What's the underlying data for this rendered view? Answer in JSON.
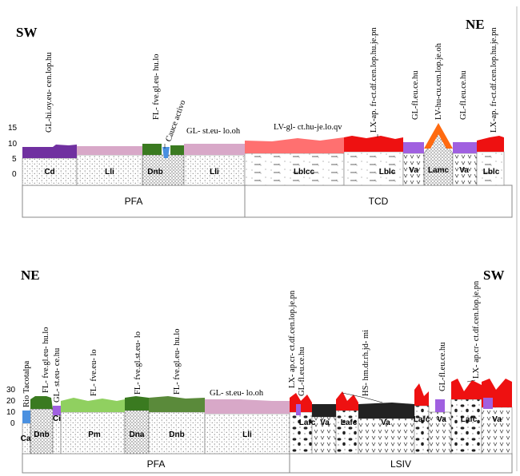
{
  "colors": {
    "purple_dark": "#7030a0",
    "pink": "#d8a8c8",
    "green_dark": "#3a7a20",
    "green_mid": "#5a8a3a",
    "green_light": "#90d060",
    "blue": "#4a90e0",
    "salmon": "#ff7070",
    "red": "#ee1111",
    "violet": "#a060e0",
    "orange": "#ff6a10",
    "black": "#222222"
  },
  "top": {
    "dir_left": "SW",
    "dir_right": "NE",
    "y_ticks": [
      "15",
      "10",
      "5",
      "0"
    ],
    "units": [
      {
        "code": "Cd"
      },
      {
        "code": "Lli"
      },
      {
        "code": "Dnb"
      },
      {
        "code": "Lli"
      },
      {
        "code": "Lblcc"
      },
      {
        "code": "Lblc"
      },
      {
        "code": "Va"
      },
      {
        "code": "Lamc"
      },
      {
        "code": "Va"
      },
      {
        "code": "Lblc"
      }
    ],
    "labels": [
      {
        "text": "GL-hi.oy.eu- cen.lop.hu"
      },
      {
        "text": "FL- fve.gl.eu- hu.lo"
      },
      {
        "text": "Cauce activo"
      },
      {
        "text": "GL- st.eu- lo.oh"
      },
      {
        "text": "LV-gl- ct.hu-je.lo.qv"
      },
      {
        "text": "LX-ap. fr-ct.df.cen.lop.hu.je.pn"
      },
      {
        "text": "GL-fl.eu.ce.hu"
      },
      {
        "text": "LV-hu-cu.cen.lop.je.oh"
      },
      {
        "text": "GL-fl.eu.ce.hu"
      },
      {
        "text": "LX-ap. fr-ct.df.cen.lop.hu.je.pn"
      }
    ],
    "bottom_bar": [
      "PFA",
      "TCD"
    ]
  },
  "bottom": {
    "dir_left": "NE",
    "dir_right": "SW",
    "y_ticks": [
      "30",
      "20",
      "10",
      "0"
    ],
    "units": [
      {
        "code": "Ca"
      },
      {
        "code": "Dnb"
      },
      {
        "code": "Ci"
      },
      {
        "code": "Pm"
      },
      {
        "code": "Dna"
      },
      {
        "code": "Dnb"
      },
      {
        "code": "Lli"
      },
      {
        "code": "Lafc"
      },
      {
        "code": "Va"
      },
      {
        "code": "Lafc"
      },
      {
        "code": "Va"
      },
      {
        "code": "Lafc"
      },
      {
        "code": "Va"
      },
      {
        "code": "Lafc"
      },
      {
        "code": "Va"
      }
    ],
    "labels": [
      {
        "text": "Rio Tacotalpa"
      },
      {
        "text": "FL- fve.gl.eu- hu.lo"
      },
      {
        "text": "GL- st.eu- ce.hu"
      },
      {
        "text": "FL- fve.eu- lo"
      },
      {
        "text": "FL- fve.gl.st.eu- lo"
      },
      {
        "text": "FL- fve.gl.eu- hu.lo"
      },
      {
        "text": "GL- st.eu- lo.oh"
      },
      {
        "text": "LX- ap.cr- ct.df.cen.lop.je.pn"
      },
      {
        "text": "GL-fl.eu.ce.hu"
      },
      {
        "text": "HS- hm.dr.rh.jd- mi"
      },
      {
        "text": "GL-fl.eu.ce.hu"
      },
      {
        "text": "LX- ap.cr- ct.df.cen.lop.je.pn"
      }
    ],
    "bottom_bar": [
      "PFA",
      "LSIV"
    ]
  }
}
